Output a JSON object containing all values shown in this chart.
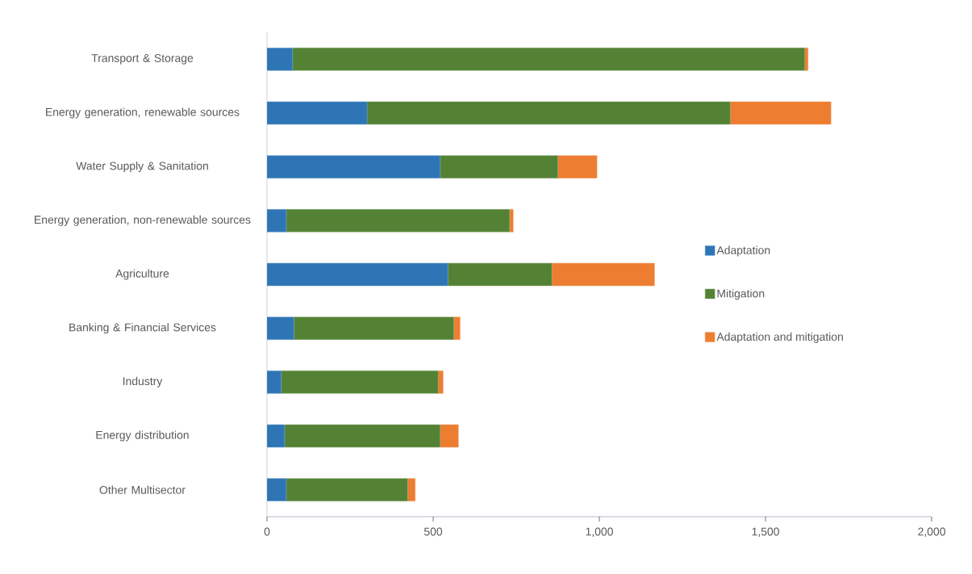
{
  "chart_data": {
    "type": "bar",
    "orientation": "horizontal",
    "stacked": true,
    "categories": [
      "Transport & Storage",
      "Energy generation, renewable sources",
      "Water Supply & Sanitation",
      "Energy generation, non-renewable sources",
      "Agriculture",
      "Banking & Financial Services",
      "Industry",
      "Energy distribution",
      "Other Multisector"
    ],
    "series": [
      {
        "name": "Adaptation",
        "color": "#2e75b6",
        "values": [
          77,
          301,
          521,
          58,
          544,
          81,
          43,
          53,
          58
        ]
      },
      {
        "name": "Mitigation",
        "color": "#548235",
        "values": [
          1541,
          1093,
          354,
          672,
          313,
          481,
          472,
          468,
          365
        ]
      },
      {
        "name": "Adaptation and mitigation",
        "color": "#ed7d31",
        "values": [
          10,
          303,
          118,
          11,
          309,
          19,
          15,
          55,
          23
        ]
      }
    ],
    "xlim": [
      0,
      2000
    ],
    "xticks": [
      0,
      500,
      {
        "value": 1000,
        "label": "1,000"
      },
      {
        "value": 1500,
        "label": "1,500"
      },
      {
        "value": 2000,
        "label": "2,000"
      }
    ],
    "legend": "right"
  }
}
